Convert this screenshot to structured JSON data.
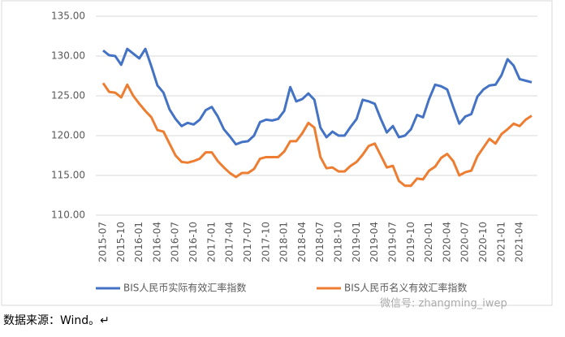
{
  "chart_data": {
    "type": "line",
    "categories": [
      "2015-07",
      null,
      null,
      "2015-10",
      null,
      null,
      "2016-01",
      null,
      null,
      "2016-04",
      null,
      null,
      "2016-07",
      null,
      null,
      "2016-10",
      null,
      null,
      "2017-01",
      null,
      null,
      "2017-04",
      null,
      null,
      "2017-07",
      null,
      null,
      "2017-10",
      null,
      null,
      "2018-01",
      null,
      null,
      "2018-04",
      null,
      null,
      "2018-07",
      null,
      null,
      "2018-10",
      null,
      null,
      "2019-01",
      null,
      null,
      "2019-04",
      null,
      null,
      "2019-07",
      null,
      null,
      "2019-10",
      null,
      null,
      "2020-01",
      null,
      null,
      "2020-04",
      null,
      null,
      "2020-07",
      null,
      null,
      "2020-10",
      null,
      null,
      "2021-01",
      null,
      null,
      "2021-04",
      null,
      null
    ],
    "series": [
      {
        "name": "BIS人民币实际有效汇率指数",
        "color": "#4472c4",
        "values": [
          130.7,
          130.1,
          130.0,
          128.9,
          130.9,
          130.3,
          129.7,
          130.9,
          128.7,
          126.3,
          125.4,
          123.3,
          122.1,
          121.2,
          121.6,
          121.4,
          122.0,
          123.2,
          123.6,
          122.4,
          120.8,
          119.9,
          118.9,
          119.2,
          119.3,
          120.0,
          121.7,
          122.0,
          121.9,
          122.1,
          123.1,
          126.1,
          124.3,
          124.6,
          125.3,
          124.5,
          121.0,
          119.8,
          120.5,
          120.0,
          120.0,
          121.1,
          122.1,
          124.5,
          124.3,
          124.0,
          122.1,
          120.4,
          121.2,
          119.8,
          120.0,
          120.8,
          122.6,
          122.3,
          124.6,
          126.4,
          126.2,
          125.8,
          123.6,
          121.5,
          122.4,
          122.7,
          124.9,
          125.8,
          126.3,
          126.4,
          127.6,
          129.6,
          128.8,
          127.1,
          126.9,
          126.7
        ]
      },
      {
        "name": "BIS人民币名义有效汇率指数",
        "color": "#ed7d31",
        "values": [
          126.6,
          125.5,
          125.4,
          124.8,
          126.4,
          125.0,
          124.0,
          123.1,
          122.3,
          120.7,
          120.5,
          119.0,
          117.5,
          116.7,
          116.6,
          116.8,
          117.1,
          117.9,
          117.9,
          116.8,
          116.0,
          115.3,
          114.8,
          115.3,
          115.3,
          115.8,
          117.1,
          117.3,
          117.3,
          117.3,
          118.0,
          119.3,
          119.3,
          120.3,
          121.6,
          121.0,
          117.3,
          115.9,
          116.0,
          115.5,
          115.5,
          116.2,
          116.7,
          117.6,
          118.7,
          119.0,
          117.5,
          116.0,
          116.2,
          114.3,
          113.7,
          113.7,
          114.6,
          114.5,
          115.6,
          116.1,
          117.2,
          117.7,
          116.8,
          115.0,
          115.4,
          115.6,
          117.4,
          118.5,
          119.6,
          119.0,
          120.2,
          120.8,
          121.5,
          121.2,
          122.0,
          122.5
        ]
      }
    ],
    "ylim": [
      110,
      135
    ],
    "yticks": [
      {
        "value": 110,
        "label": "110.00"
      },
      {
        "value": 115,
        "label": "115.00"
      },
      {
        "value": 120,
        "label": "120.00"
      },
      {
        "value": 125,
        "label": "125.00"
      },
      {
        "value": 130,
        "label": "130.00"
      },
      {
        "value": 135,
        "label": "135.00"
      }
    ],
    "grid": true
  },
  "source": "数据来源：Wind。↵",
  "watermark": "微信号: zhangming_iwep"
}
